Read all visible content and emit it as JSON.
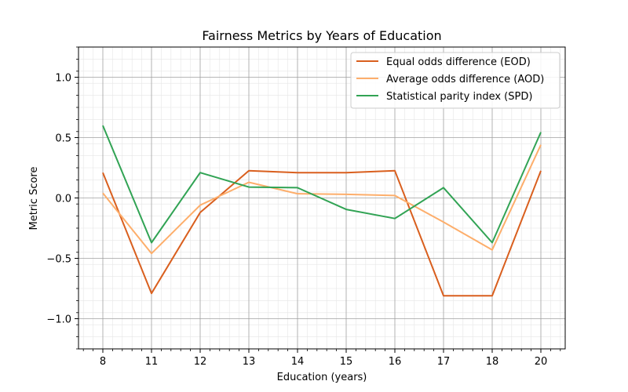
{
  "chart_data": {
    "type": "line",
    "title": "Fairness Metrics by Years of Education",
    "xlabel": "Education (years)",
    "ylabel": "Metric Score",
    "categories": [
      "8",
      "11",
      "12",
      "13",
      "14",
      "15",
      "16",
      "17",
      "18",
      "20"
    ],
    "ylim": [
      -1.25,
      1.25
    ],
    "yticks": [
      "1.0",
      "0.5",
      "0.0",
      "−0.5",
      "−1.0"
    ],
    "ytick_values": [
      1.0,
      0.5,
      0.0,
      -0.5,
      -1.0
    ],
    "grid": true,
    "minor_grid": true,
    "legend_position": "top-right",
    "series": [
      {
        "name": "Equal odds difference (EOD)",
        "color": "#d95f1e",
        "values": [
          0.21,
          -0.79,
          -0.12,
          0.225,
          0.21,
          0.21,
          0.225,
          -0.81,
          -0.81,
          0.225
        ]
      },
      {
        "name": "Average odds difference (AOD)",
        "color": "#fdae6b",
        "values": [
          0.04,
          -0.46,
          -0.06,
          0.13,
          0.035,
          0.03,
          0.02,
          -0.2,
          -0.43,
          0.44
        ]
      },
      {
        "name": "Statistical parity index (SPD)",
        "color": "#31a354",
        "values": [
          0.6,
          -0.37,
          0.21,
          0.09,
          0.085,
          -0.095,
          -0.17,
          0.085,
          -0.37,
          0.545
        ]
      }
    ]
  }
}
